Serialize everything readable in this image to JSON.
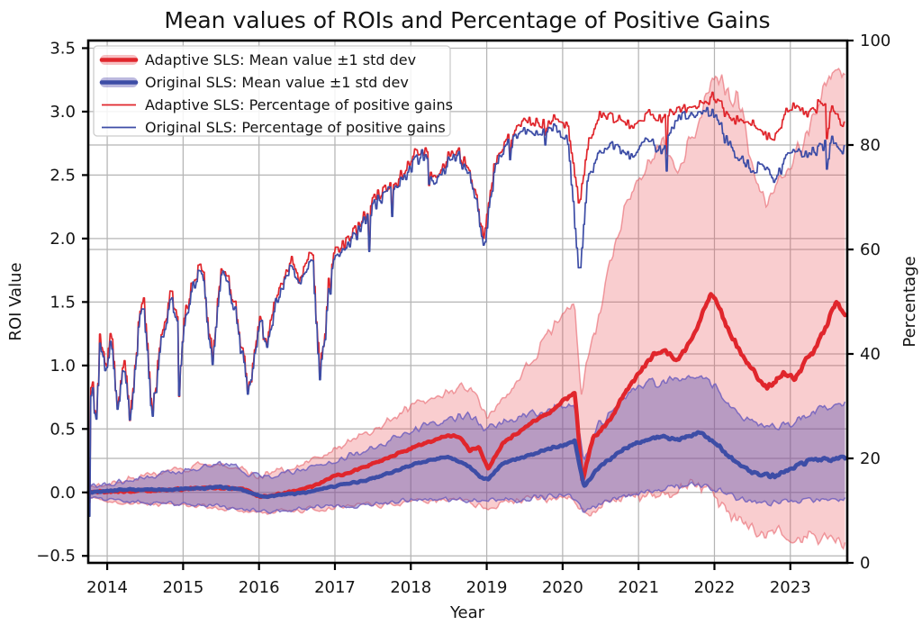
{
  "title": "Mean values of ROIs and Percentage of Positive Gains",
  "axes": {
    "x": {
      "label": "Year",
      "tick_values": [
        2014,
        2015,
        2016,
        2017,
        2018,
        2019,
        2020,
        2021,
        2022,
        2023
      ],
      "tick_labels": [
        "2014",
        "2015",
        "2016",
        "2017",
        "2018",
        "2019",
        "2020",
        "2021",
        "2022",
        "2023"
      ],
      "range": [
        2013.75,
        2023.75
      ]
    },
    "left": {
      "label": "ROI Value",
      "tick_values": [
        3.5,
        3.0,
        2.5,
        2.0,
        1.5,
        1.0,
        0.5,
        0.0,
        -0.5
      ],
      "tick_labels": [
        "3.5",
        "3.0",
        "2.5",
        "2.0",
        "1.5",
        "1.0",
        "0.5",
        "0.0",
        "−0.5"
      ],
      "range": [
        -0.555,
        3.56
      ]
    },
    "right": {
      "label": "Percentage",
      "tick_values": [
        0,
        20,
        40,
        60,
        80,
        100
      ],
      "tick_labels": [
        "0",
        "20",
        "40",
        "60",
        "80",
        "100"
      ],
      "grid_values": [
        20,
        40,
        60,
        80
      ],
      "range": [
        0,
        100
      ]
    }
  },
  "legend": {
    "entries": [
      {
        "label": "Adaptive SLS: Mean value ±1 std dev",
        "kind": "band",
        "color": "#e0262c",
        "band_color": "rgba(233,75,82,0.35)"
      },
      {
        "label": "Original SLS: Mean value ±1 std dev",
        "kind": "band",
        "color": "#3d4da6",
        "band_color": "rgba(88,80,175,0.40)"
      },
      {
        "label": "Adaptive SLS: Percentage of positive gains",
        "kind": "line",
        "color": "#e0262c"
      },
      {
        "label": "Original SLS: Percentage of positive gains",
        "kind": "line",
        "color": "#3d4da6"
      }
    ]
  },
  "colors": {
    "red": "#e0262c",
    "blue": "#3d4da6",
    "red_band_fill": "rgba(233,75,82,0.28)",
    "red_band_edge": "rgba(230,85,95,0.55)",
    "blue_band_fill": "rgba(88,80,175,0.40)",
    "blue_band_edge": "rgba(112,95,190,0.85)",
    "grid": "#b5b5b5",
    "spine": "#000000",
    "text": "#141414",
    "legend_border": "#cccccc"
  },
  "chart_data": {
    "type": "line",
    "title": "Mean values of ROIs and Percentage of Positive Gains",
    "xlabel": "Year",
    "ylabel_left": "ROI Value",
    "ylabel_right": "Percentage",
    "x_range": [
      2013.75,
      2023.75
    ],
    "x_data_range": [
      2013.76,
      2023.72
    ],
    "ylim_left": [
      -0.555,
      3.56
    ],
    "ylim_right": [
      0,
      100
    ],
    "grid": true,
    "legend_position": "upper left",
    "series": [
      {
        "id": "meanA",
        "name": "Adaptive SLS: Mean value ±1 std dev",
        "axis": "left",
        "role": "mean",
        "color_key": "red",
        "keypoints": {
          "x": [
            2013.74,
            2014.2,
            2014.7,
            2015.1,
            2015.5,
            2015.8,
            2016.05,
            2016.3,
            2016.55,
            2016.8,
            2017.0,
            2017.3,
            2017.6,
            2017.9,
            2018.1,
            2018.3,
            2018.5,
            2018.65,
            2018.78,
            2018.9,
            2019.02,
            2019.2,
            2019.4,
            2019.6,
            2019.8,
            2020.0,
            2020.16,
            2020.26,
            2020.4,
            2020.6,
            2020.8,
            2021.0,
            2021.2,
            2021.35,
            2021.5,
            2021.7,
            2021.85,
            2021.95,
            2022.05,
            2022.2,
            2022.4,
            2022.55,
            2022.65,
            2022.8,
            2022.95,
            2023.05,
            2023.2,
            2023.35,
            2023.5,
            2023.6,
            2023.68,
            2023.72
          ],
          "y": [
            0.0,
            0.01,
            0.02,
            0.03,
            0.04,
            0.02,
            -0.04,
            -0.01,
            0.02,
            0.07,
            0.13,
            0.18,
            0.25,
            0.32,
            0.37,
            0.41,
            0.45,
            0.44,
            0.33,
            0.36,
            0.18,
            0.38,
            0.47,
            0.55,
            0.62,
            0.72,
            0.79,
            0.09,
            0.43,
            0.55,
            0.76,
            0.93,
            1.09,
            1.11,
            1.04,
            1.19,
            1.42,
            1.57,
            1.48,
            1.25,
            1.05,
            0.92,
            0.82,
            0.87,
            0.95,
            0.88,
            1.04,
            1.15,
            1.35,
            1.5,
            1.42,
            1.4
          ]
        },
        "band_upper": {
          "x": [
            2013.74,
            2014.0,
            2014.5,
            2015.0,
            2015.3,
            2015.6,
            2016.0,
            2016.5,
            2017.0,
            2017.5,
            2018.0,
            2018.3,
            2018.6,
            2018.8,
            2019.0,
            2019.3,
            2019.5,
            2019.75,
            2019.9,
            2020.05,
            2020.16,
            2020.24,
            2020.35,
            2020.5,
            2020.65,
            2020.8,
            2021.0,
            2021.2,
            2021.35,
            2021.5,
            2021.7,
            2021.9,
            2022.0,
            2022.15,
            2022.3,
            2022.5,
            2022.7,
            2022.9,
            2023.0,
            2023.2,
            2023.4,
            2023.55,
            2023.65,
            2023.72
          ],
          "y": [
            0.04,
            0.08,
            0.13,
            0.18,
            0.22,
            0.22,
            0.13,
            0.2,
            0.34,
            0.5,
            0.68,
            0.75,
            0.8,
            0.85,
            0.6,
            0.8,
            0.95,
            1.18,
            1.33,
            1.43,
            1.48,
            0.76,
            1.1,
            1.45,
            1.85,
            2.2,
            2.5,
            2.71,
            2.77,
            2.53,
            2.8,
            3.1,
            3.32,
            3.2,
            3.17,
            2.6,
            2.29,
            2.46,
            2.53,
            2.82,
            3.05,
            3.3,
            3.36,
            3.18
          ]
        },
        "band_lower": {
          "x": [
            2013.74,
            2014.0,
            2014.5,
            2015.0,
            2015.5,
            2016.0,
            2016.5,
            2017.0,
            2017.5,
            2018.0,
            2018.5,
            2018.8,
            2019.0,
            2019.3,
            2019.6,
            2020.0,
            2020.15,
            2020.3,
            2020.5,
            2020.8,
            2021.0,
            2021.3,
            2021.6,
            2021.85,
            2022.0,
            2022.2,
            2022.4,
            2022.6,
            2022.8,
            2023.0,
            2023.15,
            2023.3,
            2023.5,
            2023.65,
            2023.72
          ],
          "y": [
            -0.04,
            -0.07,
            -0.09,
            -0.1,
            -0.12,
            -0.16,
            -0.14,
            -0.12,
            -0.1,
            -0.08,
            -0.06,
            -0.09,
            -0.12,
            -0.07,
            -0.05,
            -0.04,
            -0.05,
            -0.18,
            -0.12,
            -0.07,
            -0.04,
            0.0,
            0.04,
            0.05,
            -0.04,
            -0.15,
            -0.25,
            -0.33,
            -0.3,
            -0.33,
            -0.35,
            -0.33,
            -0.35,
            -0.4,
            -0.43
          ]
        }
      },
      {
        "id": "meanO",
        "name": "Original SLS: Mean value ±1 std dev",
        "axis": "left",
        "role": "mean",
        "color_key": "blue",
        "keypoints": {
          "x": [
            2013.74,
            2014.2,
            2014.7,
            2015.1,
            2015.5,
            2015.8,
            2016.05,
            2016.3,
            2016.6,
            2017.0,
            2017.3,
            2017.6,
            2017.9,
            2018.1,
            2018.3,
            2018.5,
            2018.76,
            2018.92,
            2019.02,
            2019.2,
            2019.5,
            2019.8,
            2020.16,
            2020.28,
            2020.5,
            2020.8,
            2021.0,
            2021.3,
            2021.5,
            2021.8,
            2022.0,
            2022.2,
            2022.4,
            2022.6,
            2022.8,
            2023.0,
            2023.2,
            2023.4,
            2023.6,
            2023.72
          ],
          "y": [
            0.0,
            0.02,
            0.02,
            0.03,
            0.04,
            0.02,
            -0.04,
            -0.02,
            0.0,
            0.05,
            0.08,
            0.13,
            0.19,
            0.23,
            0.26,
            0.28,
            0.21,
            0.12,
            0.1,
            0.23,
            0.28,
            0.34,
            0.4,
            0.05,
            0.21,
            0.34,
            0.4,
            0.44,
            0.42,
            0.47,
            0.4,
            0.28,
            0.19,
            0.14,
            0.13,
            0.19,
            0.24,
            0.26,
            0.26,
            0.28
          ]
        },
        "band_upper": {
          "x": [
            2013.74,
            2014.0,
            2014.5,
            2015.0,
            2015.3,
            2015.6,
            2016.0,
            2016.5,
            2017.0,
            2017.5,
            2018.0,
            2018.5,
            2018.76,
            2019.0,
            2019.3,
            2019.6,
            2020.0,
            2020.16,
            2020.28,
            2020.5,
            2020.75,
            2021.0,
            2021.3,
            2021.5,
            2021.8,
            2022.0,
            2022.3,
            2022.5,
            2022.8,
            2023.0,
            2023.3,
            2023.5,
            2023.72
          ],
          "y": [
            0.035,
            0.07,
            0.12,
            0.17,
            0.21,
            0.21,
            0.12,
            0.18,
            0.25,
            0.36,
            0.48,
            0.57,
            0.6,
            0.5,
            0.56,
            0.62,
            0.68,
            0.7,
            0.25,
            0.55,
            0.72,
            0.85,
            0.87,
            0.89,
            0.91,
            0.85,
            0.6,
            0.55,
            0.52,
            0.55,
            0.64,
            0.66,
            0.67
          ]
        },
        "band_lower": {
          "x": [
            2013.74,
            2014.0,
            2014.5,
            2015.0,
            2015.5,
            2016.0,
            2016.5,
            2017.0,
            2017.5,
            2018.0,
            2018.5,
            2019.0,
            2019.5,
            2020.1,
            2020.28,
            2020.5,
            2021.0,
            2021.5,
            2021.8,
            2022.0,
            2022.3,
            2022.6,
            2023.0,
            2023.5,
            2023.72
          ],
          "y": [
            -0.035,
            -0.06,
            -0.08,
            -0.09,
            -0.11,
            -0.15,
            -0.13,
            -0.11,
            -0.09,
            -0.06,
            -0.05,
            -0.07,
            -0.05,
            -0.02,
            -0.16,
            -0.09,
            0.0,
            0.05,
            0.06,
            0.02,
            -0.04,
            -0.08,
            -0.07,
            -0.05,
            -0.06
          ]
        }
      },
      {
        "id": "pctA",
        "name": "Adaptive SLS: Percentage of positive gains",
        "axis": "right",
        "role": "pct",
        "color_key": "red",
        "keypoints": {
          "x": [
            2013.74,
            2013.76,
            2013.79,
            2013.84,
            2013.9,
            2013.97,
            2014.05,
            2014.13,
            2014.22,
            2014.3,
            2014.4,
            2014.48,
            2014.59,
            2014.7,
            2014.84,
            2014.95,
            2015.1,
            2015.25,
            2015.38,
            2015.5,
            2015.65,
            2015.85,
            2016.0,
            2016.1,
            2016.25,
            2016.4,
            2016.55,
            2016.7,
            2016.8,
            2016.95,
            2017.1,
            2017.3,
            2017.5,
            2017.7,
            2017.9,
            2018.05,
            2018.2,
            2018.33,
            2018.45,
            2018.6,
            2018.75,
            2018.87,
            2018.96,
            2019.1,
            2019.3,
            2019.5,
            2019.7,
            2019.9,
            2020.05,
            2020.14,
            2020.22,
            2020.32,
            2020.5,
            2020.7,
            2020.9,
            2021.1,
            2021.3,
            2021.5,
            2021.7,
            2021.9,
            2022.0,
            2022.15,
            2022.3,
            2022.5,
            2022.65,
            2022.8,
            2022.95,
            2023.1,
            2023.25,
            2023.4,
            2023.55,
            2023.65,
            2023.72
          ],
          "y": [
            40,
            11,
            42,
            26,
            42,
            38,
            44,
            30,
            40,
            27,
            45,
            50,
            27,
            44,
            51,
            45,
            52,
            58,
            38,
            57,
            52,
            33,
            47,
            43,
            52,
            57,
            54,
            60,
            36,
            58,
            61,
            64,
            69,
            72,
            74,
            78,
            79,
            73,
            77,
            79,
            76,
            70,
            62,
            76,
            82,
            85,
            84,
            85,
            84,
            76,
            68,
            80,
            86,
            85,
            84,
            86,
            85,
            87,
            88,
            88,
            89,
            86,
            85,
            84,
            82,
            81,
            87,
            87,
            86,
            88,
            87,
            85,
            84
          ]
        }
      },
      {
        "id": "pctO",
        "name": "Original SLS: Percentage of positive gains",
        "axis": "right",
        "role": "pct",
        "color_key": "blue",
        "keypoints": {
          "x": [
            2013.74,
            2013.76,
            2013.79,
            2013.84,
            2013.9,
            2013.97,
            2014.05,
            2014.13,
            2014.22,
            2014.3,
            2014.4,
            2014.48,
            2014.59,
            2014.7,
            2014.84,
            2014.95,
            2015.1,
            2015.25,
            2015.38,
            2015.5,
            2015.65,
            2015.85,
            2016.0,
            2016.1,
            2016.25,
            2016.4,
            2016.55,
            2016.7,
            2016.8,
            2016.95,
            2017.1,
            2017.3,
            2017.5,
            2017.7,
            2017.9,
            2018.05,
            2018.2,
            2018.33,
            2018.45,
            2018.6,
            2018.75,
            2018.87,
            2018.96,
            2019.1,
            2019.3,
            2019.5,
            2019.7,
            2019.9,
            2020.05,
            2020.14,
            2020.22,
            2020.32,
            2020.5,
            2020.7,
            2020.9,
            2021.1,
            2021.3,
            2021.5,
            2021.7,
            2021.9,
            2022.0,
            2022.15,
            2022.3,
            2022.5,
            2022.65,
            2022.8,
            2022.95,
            2023.1,
            2023.25,
            2023.4,
            2023.55,
            2023.65,
            2023.72
          ],
          "y": [
            39,
            9,
            41,
            25,
            41,
            37,
            43,
            29,
            39,
            26,
            44,
            49,
            26,
            43,
            50,
            44,
            51,
            57,
            37,
            56,
            51,
            32,
            46,
            42,
            51,
            56,
            53,
            59,
            35,
            57,
            60,
            63,
            68,
            71,
            73,
            77,
            78,
            72,
            76,
            78,
            75,
            69,
            60,
            75,
            81,
            83,
            82,
            83,
            82,
            68,
            54,
            73,
            79,
            80,
            78,
            81,
            79,
            85,
            86,
            86,
            86,
            81,
            78,
            75,
            76,
            73,
            78,
            79,
            78,
            80,
            81,
            79,
            80
          ]
        }
      }
    ]
  }
}
